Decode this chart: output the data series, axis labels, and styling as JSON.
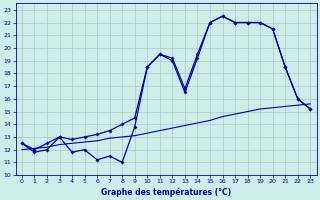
{
  "xlabel": "Graphe des températures (°C)",
  "background_color": "#cceee8",
  "grid_color": "#aac8c8",
  "line_color": "#0000aa",
  "x_hours": [
    0,
    1,
    2,
    3,
    4,
    5,
    6,
    7,
    8,
    9,
    10,
    11,
    12,
    13,
    14,
    15,
    16,
    17,
    18,
    19,
    20,
    21,
    22,
    23
  ],
  "temp_jagged": [
    12.5,
    11.8,
    12.0,
    13.0,
    11.8,
    12.0,
    11.2,
    11.5,
    11.0,
    13.8,
    18.5,
    19.5,
    19.0,
    16.5,
    19.2,
    22.0,
    22.5,
    22.0,
    22.0,
    22.0,
    21.5,
    18.5,
    16.0,
    15.2
  ],
  "temp_upper": [
    12.5,
    12.0,
    12.5,
    13.0,
    12.8,
    13.0,
    13.2,
    13.5,
    14.0,
    14.5,
    18.5,
    19.5,
    19.2,
    16.8,
    19.5,
    22.0,
    22.5,
    22.0,
    22.0,
    22.0,
    21.5,
    18.5,
    16.0,
    15.2
  ],
  "temp_trend": [
    12.0,
    12.1,
    12.2,
    12.4,
    12.5,
    12.6,
    12.7,
    12.9,
    13.0,
    13.1,
    13.3,
    13.5,
    13.7,
    13.9,
    14.1,
    14.3,
    14.6,
    14.8,
    15.0,
    15.2,
    15.3,
    15.4,
    15.5,
    15.6
  ],
  "ylim": [
    10,
    23.5
  ],
  "yticks": [
    10,
    11,
    12,
    13,
    14,
    15,
    16,
    17,
    18,
    19,
    20,
    21,
    22,
    23
  ],
  "xticks": [
    0,
    1,
    2,
    3,
    4,
    5,
    6,
    7,
    8,
    9,
    10,
    11,
    12,
    13,
    14,
    15,
    16,
    17,
    18,
    19,
    20,
    21,
    22,
    23
  ]
}
